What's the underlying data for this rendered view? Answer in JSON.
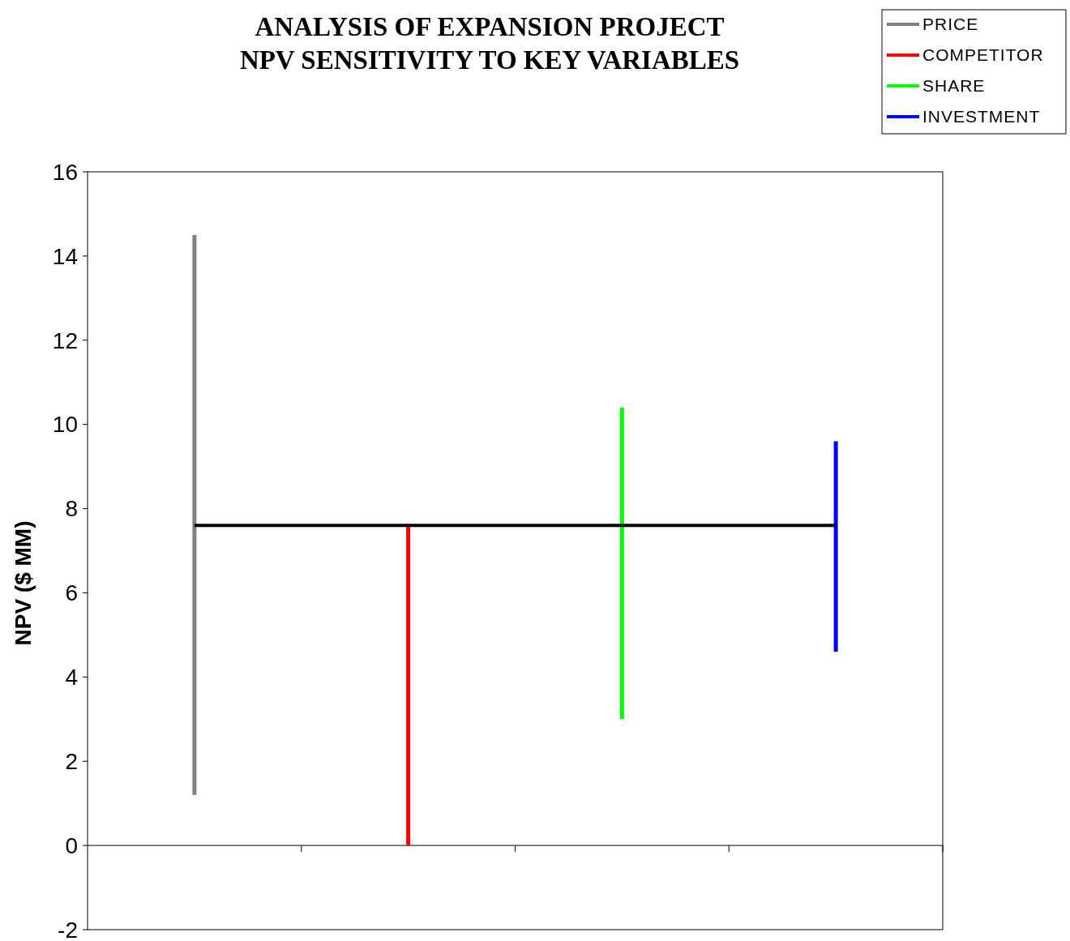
{
  "chart_data": {
    "type": "bar",
    "title": "ANALYSIS OF EXPANSION PROJECT\nNPV SENSITIVITY TO KEY VARIABLES",
    "ylabel": "NPV ($ MM)",
    "categories": [
      null,
      null,
      null,
      null
    ],
    "series": [
      {
        "name": "PRICE",
        "color": "#808080",
        "values": [
          13.3,
          null,
          null,
          null
        ],
        "base": [
          1.2,
          null,
          null,
          null
        ]
      },
      {
        "name": "COMPETITOR",
        "color": "#ff0000",
        "values": [
          null,
          7.6,
          null,
          null
        ],
        "base": [
          null,
          0,
          null,
          null
        ]
      },
      {
        "name": "SHARE",
        "color": "#00ff00",
        "values": [
          null,
          null,
          7.4,
          null
        ],
        "base": [
          null,
          null,
          3.0,
          null
        ]
      },
      {
        "name": "INVESTMENT",
        "color": "#0000ff",
        "values": [
          null,
          null,
          null,
          5.0
        ],
        "base": [
          null,
          null,
          null,
          4.6
        ]
      },
      {
        "type": "line",
        "color": "#000000",
        "values": [
          7.6,
          7.6,
          7.6,
          7.6
        ]
      }
    ],
    "ylim": [
      -2,
      16
    ],
    "yticks": [
      -2,
      0,
      2,
      4,
      6,
      8,
      10,
      12,
      14,
      16
    ],
    "legend": "top right",
    "grid": false
  }
}
